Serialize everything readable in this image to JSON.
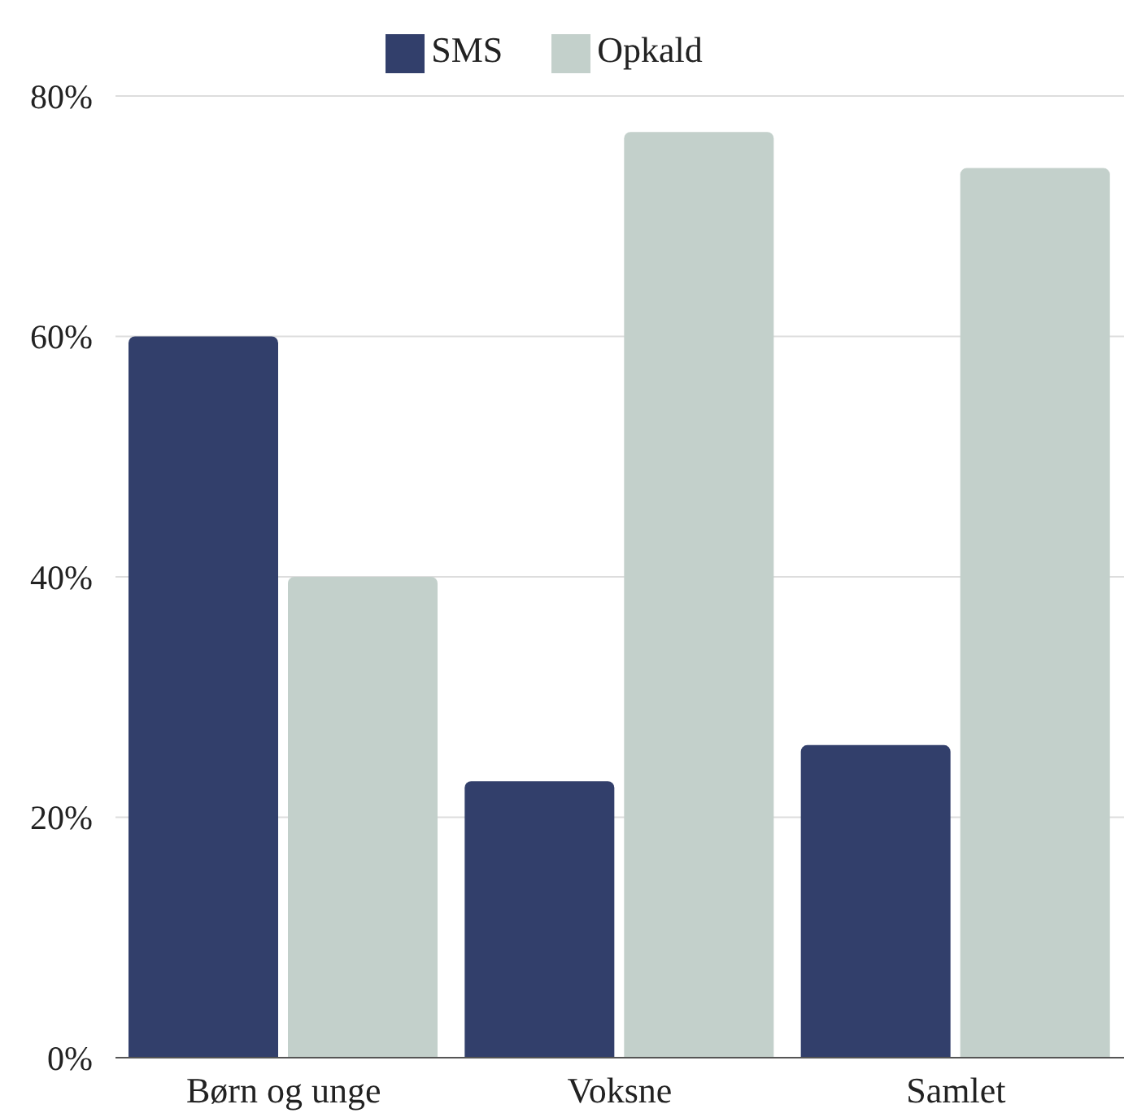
{
  "chart_data": {
    "type": "bar",
    "categories": [
      "Børn og unge",
      "Voksne",
      "Samlet"
    ],
    "series": [
      {
        "name": "SMS",
        "color": "#323f6b",
        "values": [
          60,
          23,
          26
        ]
      },
      {
        "name": "Opkald",
        "color": "#c3d0cb",
        "values": [
          40,
          77,
          74
        ]
      }
    ],
    "ylim": [
      0,
      80
    ],
    "yticks": [
      {
        "value": 0,
        "label": "0%"
      },
      {
        "value": 20,
        "label": "20%"
      },
      {
        "value": 40,
        "label": "40%"
      },
      {
        "value": 60,
        "label": "60%"
      },
      {
        "value": 80,
        "label": "80%"
      }
    ],
    "grid": "y",
    "legend": "top"
  }
}
